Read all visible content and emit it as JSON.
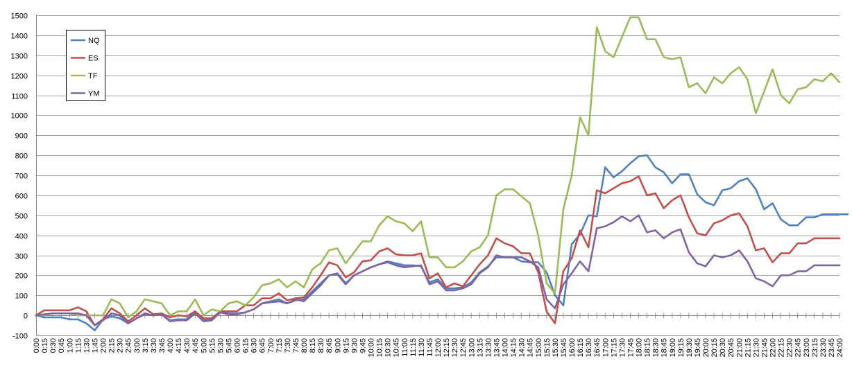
{
  "chart_data": {
    "type": "line",
    "title": "",
    "xlabel": "",
    "ylabel": "",
    "ylim": [
      -100,
      1500
    ],
    "yticks": [
      -100,
      0,
      100,
      200,
      300,
      400,
      500,
      600,
      700,
      800,
      900,
      1000,
      1100,
      1200,
      1300,
      1400,
      1500
    ],
    "grid": "horizontal",
    "legend_position": "top-left",
    "x_tick_labels": [
      "0:00",
      "0:15",
      "0:30",
      "0:45",
      "1:00",
      "1:15",
      "1:30",
      "1:45",
      "2:00",
      "2:15",
      "2:30",
      "2:45",
      "3:00",
      "3:15",
      "3:30",
      "3:45",
      "4:00",
      "4:15",
      "4:30",
      "4:45",
      "5:00",
      "5:15",
      "5:30",
      "5:45",
      "6:00",
      "6:15",
      "6:30",
      "6:45",
      "7:00",
      "7:15",
      "7:30",
      "7:45",
      "8:00",
      "8:15",
      "8:30",
      "8:45",
      "9:00",
      "9:15",
      "9:30",
      "9:45",
      "10:00",
      "10:15",
      "10:30",
      "10:45",
      "11:00",
      "11:15",
      "11:30",
      "11:45",
      "12:00",
      "12:15",
      "12:30",
      "12:45",
      "13:00",
      "13:15",
      "13:30",
      "13:45",
      "14:00",
      "14:15",
      "14:30",
      "14:45",
      "15:00",
      "15:15",
      "15:30",
      "15:45",
      "16:00",
      "16:15",
      "16:30",
      "16:45",
      "17:00",
      "17:15",
      "17:30",
      "17:45",
      "18:00",
      "18:15",
      "18:30",
      "18:45",
      "19:00",
      "19:15",
      "19:30",
      "19:45",
      "20:00",
      "20:15",
      "20:30",
      "20:45",
      "21:00",
      "21:15",
      "21:30",
      "21:45",
      "22:00",
      "22:15",
      "22:30",
      "22:45",
      "23:00",
      "23:15",
      "23:30",
      "23:45",
      "24:00"
    ],
    "series": [
      {
        "name": "NQ",
        "color": "#4F81BD",
        "values": [
          0,
          -10,
          -10,
          -10,
          -20,
          -20,
          -40,
          -75,
          -20,
          -5,
          -15,
          -40,
          -15,
          5,
          0,
          5,
          -25,
          -20,
          -20,
          20,
          -25,
          -20,
          20,
          10,
          10,
          15,
          30,
          60,
          70,
          80,
          60,
          75,
          80,
          120,
          160,
          200,
          210,
          160,
          200,
          220,
          240,
          255,
          270,
          260,
          250,
          250,
          245,
          165,
          180,
          135,
          135,
          140,
          165,
          215,
          245,
          290,
          290,
          290,
          270,
          265,
          265,
          215,
          100,
          50,
          355,
          405,
          500,
          495,
          740,
          690,
          720,
          760,
          795,
          800,
          740,
          715,
          660,
          705,
          705,
          605,
          565,
          550,
          625,
          635,
          670,
          685,
          630,
          530,
          560,
          480,
          450,
          450,
          490,
          490,
          505,
          505,
          505,
          505
        ]
      },
      {
        "name": "ES",
        "color": "#C0504D",
        "values": [
          0,
          25,
          25,
          25,
          25,
          40,
          20,
          -50,
          -20,
          35,
          10,
          -30,
          0,
          35,
          5,
          10,
          -10,
          0,
          -5,
          20,
          -15,
          -15,
          20,
          20,
          20,
          50,
          50,
          85,
          85,
          110,
          75,
          85,
          90,
          140,
          200,
          265,
          250,
          190,
          215,
          270,
          275,
          320,
          335,
          305,
          300,
          300,
          310,
          185,
          210,
          140,
          160,
          145,
          200,
          255,
          300,
          385,
          360,
          345,
          310,
          310,
          215,
          20,
          -40,
          220,
          285,
          425,
          340,
          625,
          610,
          635,
          660,
          670,
          695,
          600,
          610,
          535,
          575,
          600,
          490,
          410,
          400,
          460,
          475,
          500,
          510,
          445,
          325,
          335,
          265,
          310,
          310,
          360,
          360,
          385,
          385,
          385,
          385
        ]
      },
      {
        "name": "TF",
        "color": "#9BBB59",
        "values": [
          0,
          0,
          10,
          10,
          10,
          0,
          0,
          0,
          0,
          80,
          60,
          -10,
          20,
          80,
          70,
          60,
          0,
          20,
          20,
          80,
          0,
          30,
          20,
          60,
          70,
          50,
          90,
          150,
          160,
          180,
          140,
          170,
          140,
          230,
          260,
          325,
          335,
          260,
          315,
          370,
          370,
          450,
          495,
          470,
          460,
          420,
          470,
          290,
          290,
          240,
          240,
          270,
          320,
          340,
          400,
          600,
          630,
          630,
          595,
          560,
          400,
          160,
          110,
          530,
          700,
          990,
          900,
          1440,
          1320,
          1290,
          1390,
          1490,
          1490,
          1380,
          1380,
          1290,
          1280,
          1290,
          1140,
          1160,
          1110,
          1190,
          1160,
          1210,
          1240,
          1180,
          1010,
          1120,
          1230,
          1100,
          1060,
          1130,
          1140,
          1180,
          1170,
          1210,
          1165
        ]
      },
      {
        "name": "YM",
        "color": "#8064A2",
        "values": [
          0,
          5,
          10,
          10,
          10,
          10,
          0,
          -50,
          -25,
          10,
          0,
          -40,
          -15,
          10,
          0,
          5,
          -30,
          -25,
          -25,
          10,
          -30,
          -25,
          15,
          5,
          5,
          15,
          30,
          60,
          65,
          70,
          60,
          80,
          70,
          110,
          150,
          200,
          205,
          155,
          200,
          220,
          240,
          255,
          265,
          250,
          240,
          245,
          250,
          155,
          170,
          125,
          125,
          135,
          155,
          210,
          240,
          300,
          290,
          290,
          290,
          270,
          240,
          80,
          35,
          155,
          210,
          270,
          220,
          435,
          445,
          465,
          495,
          470,
          500,
          415,
          425,
          385,
          415,
          430,
          315,
          260,
          245,
          300,
          290,
          300,
          325,
          270,
          185,
          170,
          145,
          200,
          200,
          220,
          220,
          250,
          250,
          250,
          250
        ]
      }
    ]
  }
}
